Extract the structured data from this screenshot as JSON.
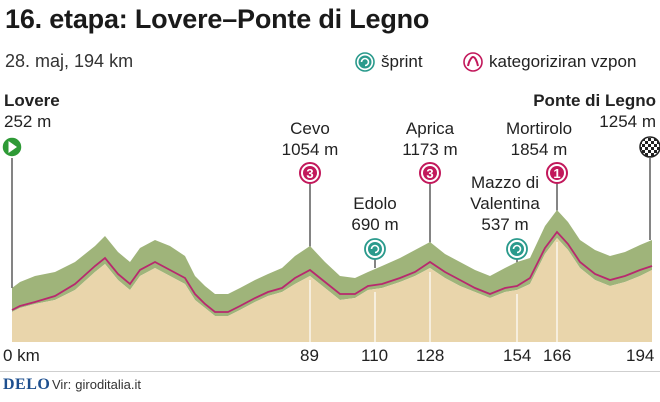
{
  "title": "16. etapa: Lovere–Ponte di Legno",
  "subtitle": "28. maj, 194 km",
  "legend": {
    "sprint": "šprint",
    "climb": "kategoriziran vzpon"
  },
  "places": {
    "start": {
      "name": "Lovere",
      "elevation": "252 m"
    },
    "cevo": {
      "name": "Cevo",
      "elevation": "1054 m",
      "category": "3"
    },
    "edolo": {
      "name": "Edolo",
      "elevation": "690 m"
    },
    "aprica": {
      "name": "Aprica",
      "elevation": "1173 m",
      "category": "3"
    },
    "mazzo": {
      "name_line1": "Mazzo di",
      "name_line2": "Valentina",
      "elevation": "537 m"
    },
    "mortirolo": {
      "name": "Mortirolo",
      "elevation": "1854 m",
      "category": "1"
    },
    "finish": {
      "name": "Ponte di Legno",
      "elevation": "1254 m"
    }
  },
  "km_marks": [
    "0 km",
    "89",
    "110",
    "128",
    "154",
    "166",
    "194"
  ],
  "footer": {
    "brand": "DELO",
    "source_label": "Vir:",
    "source": "giroditalia.it"
  },
  "colors": {
    "slope": "#9fb47a",
    "ground": "#e9d5ab",
    "route_line": "#b8296e",
    "climb_badge": "#c2185b",
    "sprint_badge": "#2a9a8c",
    "start_flag": "#2e9a36"
  }
}
